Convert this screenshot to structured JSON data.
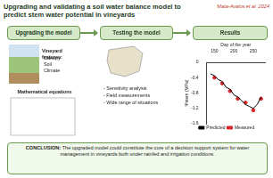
{
  "header": {
    "title": "Upgrading and validating a soil water balance model to predict stem water potential in vineyards",
    "author": "Mata-Avalos et al. 2024"
  },
  "panels": [
    "Upgrading the model",
    "Testing the model",
    "Results"
  ],
  "upgrading": {
    "features_title": "Vineyard features:",
    "features": [
      "Canopy",
      "Soil",
      "Climate"
    ],
    "equations": "Mathematical equations"
  },
  "testing": {
    "items": [
      "- Sensitivity analysis",
      "- Field measurements",
      "- Wide range of situations"
    ]
  },
  "chart_data": {
    "type": "line",
    "x_label": "Day of the year",
    "y_label": "Ψstem (MPa)",
    "x": [
      140,
      150,
      160,
      170,
      180,
      190,
      200,
      210,
      220,
      230,
      240,
      250,
      260,
      270
    ],
    "series": [
      {
        "name": "Predicted",
        "color": "#000000",
        "line_style": "solid",
        "values": [
          -0.3,
          -0.35,
          -0.45,
          -0.5,
          -0.65,
          -0.7,
          -0.85,
          -0.9,
          -1.0,
          -1.1,
          -1.15,
          -1.2,
          -1.1,
          -0.9
        ]
      },
      {
        "name": "Measured",
        "color": "#d62728",
        "marker": "circle",
        "values": [
          null,
          -0.4,
          null,
          -0.55,
          null,
          -0.75,
          null,
          -0.95,
          null,
          -1.05,
          null,
          -1.25,
          null,
          -0.95
        ]
      }
    ],
    "xlim": [
      130,
      280
    ],
    "xticks": [
      150,
      200,
      250
    ],
    "ylim": [
      -1.6,
      0
    ],
    "yticks": [
      -1.6,
      -1.2,
      -0.8,
      -0.4,
      0
    ],
    "legend": "bottom",
    "grid": false
  },
  "conclusion": {
    "label": "CONCLUSION:",
    "text": "The upgraded model could constitute the core of a decision support system for water management in vineyards both under rainfed and irrigation conditions."
  }
}
